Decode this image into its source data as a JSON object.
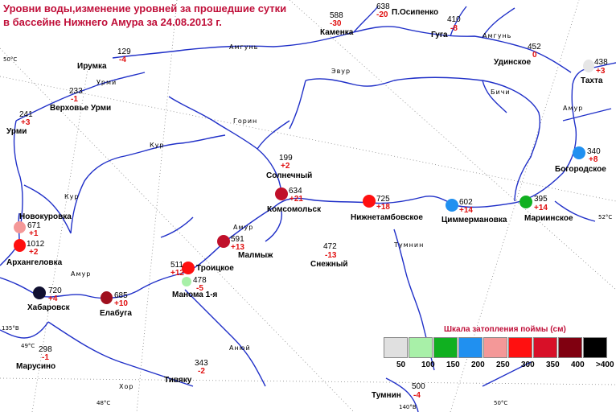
{
  "title": {
    "line1": "Уровни воды,изменение уровней за прошедшие сутки",
    "line2": "в бассейне Нижнего Амура за  24.08.2013 г."
  },
  "colors": {
    "title": "#c0103a",
    "change": "#e01010",
    "river": "#2030c8",
    "gridline": "#888888"
  },
  "stations": [
    {
      "id": "p-osipenko",
      "name": "П.Осипенко",
      "level": "638",
      "change": "-20"
    },
    {
      "id": "kamenka",
      "name": "Каменка",
      "level": "588",
      "change": "-30"
    },
    {
      "id": "guga",
      "name": "Гуга",
      "level": "410",
      "change": "-8"
    },
    {
      "id": "udinskoe",
      "name": "Удинское",
      "level": "452",
      "change": "0"
    },
    {
      "id": "tahta",
      "name": "Тахта",
      "level": "438",
      "change": "+3",
      "dot": "#e6e6e6"
    },
    {
      "id": "irumka",
      "name": "Ирумка",
      "level": "129",
      "change": "-4"
    },
    {
      "id": "verhovie-urmi",
      "name": "Верховье Урми",
      "level": "233",
      "change": "-1"
    },
    {
      "id": "urmi",
      "name": "Урми",
      "level": "241",
      "change": "+3"
    },
    {
      "id": "bogorodskoe",
      "name": "Богородское",
      "level": "340",
      "change": "+8",
      "dot": "#2090f0"
    },
    {
      "id": "solnechny",
      "name": "Солнечный",
      "level": "199",
      "change": "+2"
    },
    {
      "id": "komsomolsk",
      "name": "Комсомольск",
      "level": "634",
      "change": "+21",
      "dot": "#c0102a"
    },
    {
      "id": "nizhnetambovskoe",
      "name": "Нижнетамбовское",
      "level": "725",
      "change": "+18",
      "dot": "#ff1010"
    },
    {
      "id": "cimmermanovka",
      "name": "Циммермановка",
      "level": "602",
      "change": "+14",
      "dot": "#2090f0"
    },
    {
      "id": "marinskoe",
      "name": "Мариинское",
      "level": "395",
      "change": "+14",
      "dot": "#10b020"
    },
    {
      "id": "novokurovka",
      "name": "Новокуровка",
      "level": "671",
      "change": "+1",
      "dot": "#f49898"
    },
    {
      "id": "arhangelovka",
      "name": "Архангеловка",
      "level": "1012",
      "change": "+2",
      "dot": "#ff1010"
    },
    {
      "id": "malmyzh",
      "name": "Малмыж",
      "level": "591",
      "change": "+13",
      "dot": "#c0102a"
    },
    {
      "id": "snezhny",
      "name": "Снежный",
      "level": "472",
      "change": "-13"
    },
    {
      "id": "troickoe",
      "name": "Троицкое",
      "level": "511",
      "change": "+12",
      "dot": "#ff1010"
    },
    {
      "id": "manoma",
      "name": "Манома 1-я",
      "level": "478",
      "change": "-5",
      "dot": "#a8f0a8"
    },
    {
      "id": "khabarovsk",
      "name": "Хабаровск",
      "level": "720",
      "change": "+4",
      "dot": "#101030"
    },
    {
      "id": "elabuga",
      "name": "Елабуга",
      "level": "685",
      "change": "+10",
      "dot": "#a0101e"
    },
    {
      "id": "marusino",
      "name": "Марусино",
      "level": "298",
      "change": "-1"
    },
    {
      "id": "tivyaku",
      "name": "Тивяку",
      "level": "343",
      "change": "-2"
    },
    {
      "id": "tumnin",
      "name": "Тумнин",
      "level": "500",
      "change": "-4"
    }
  ],
  "rivers": {
    "amgun": "Амгунь",
    "amgun2": "Амгунь",
    "urmi": "Урми",
    "evur": "Эвур",
    "gorin": "Горин",
    "kur": "Кур",
    "kur2": "Кур",
    "bichi": "Бичи",
    "amur1": "Амур",
    "amur2": "Амур",
    "amur3": "Амур",
    "tumnin": "Тумнин",
    "hor": "Хор",
    "anyui": "Анюй"
  },
  "coords": {
    "c50w": "50°С",
    "c52e": "52°С",
    "c135": "135°В",
    "c49": "49°С",
    "c48": "48°С",
    "c50s": "50°С",
    "c140": "140°В"
  },
  "scale": {
    "title": "Шкала затопления поймы (см)",
    "items": [
      {
        "label": "50",
        "color": "#e0e0e0"
      },
      {
        "label": "100",
        "color": "#a8f0a8"
      },
      {
        "label": "150",
        "color": "#10b020"
      },
      {
        "label": "200",
        "color": "#2090f0"
      },
      {
        "label": "250",
        "color": "#f49898"
      },
      {
        "label": "300",
        "color": "#ff1010"
      },
      {
        "label": "350",
        "color": "#d81028"
      },
      {
        "label": "400",
        "color": "#800010"
      },
      {
        "label": ">400",
        "color": "#000000"
      }
    ]
  }
}
